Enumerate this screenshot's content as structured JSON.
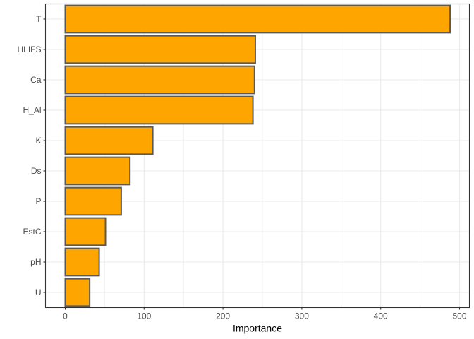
{
  "chart_data": {
    "type": "bar",
    "orientation": "horizontal",
    "title": "",
    "xlabel": "Importance",
    "ylabel": "",
    "categories": [
      "T",
      "HLIFS",
      "Ca",
      "H_Al",
      "K",
      "Ds",
      "P",
      "EstC",
      "pH",
      "U"
    ],
    "values": [
      488,
      241,
      240,
      238,
      111,
      82,
      71,
      51,
      43,
      31
    ],
    "xlim": [
      0,
      511
    ],
    "xticks": [
      0,
      100,
      200,
      300,
      400,
      500
    ],
    "xminor": [
      50,
      150,
      250,
      350,
      450
    ],
    "grid": true,
    "legend": "none",
    "colors": {
      "bar_fill": "#FFA500",
      "bar_stroke": "#595959",
      "grid": "#ebebeb",
      "panel_border": "#333333",
      "tick_text": "#4d4d4d",
      "axis_title": "#000000"
    }
  }
}
